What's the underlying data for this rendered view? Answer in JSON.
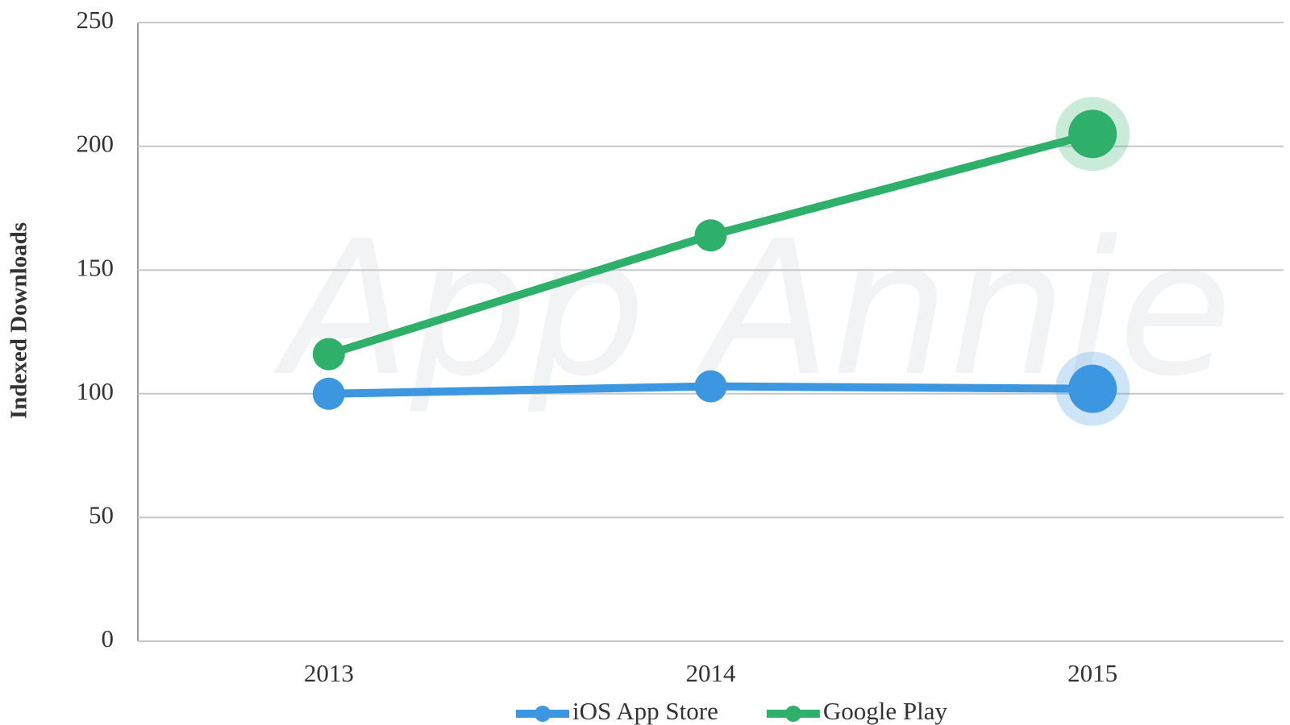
{
  "chart_data": {
    "type": "line",
    "y_label": "Indexed Downloads",
    "watermark": "App Annie",
    "categories": [
      "2013",
      "2014",
      "2015"
    ],
    "series": [
      {
        "name": "iOS App Store",
        "color": "#3d97e0",
        "values": [
          100,
          103,
          102
        ]
      },
      {
        "name": "Google Play",
        "color": "#2eb06a",
        "values": [
          116,
          164,
          205
        ]
      }
    ],
    "ylim": [
      0,
      250
    ],
    "yticks": [
      0,
      50,
      100,
      150,
      200,
      250
    ],
    "grid": true,
    "legend": "bottom"
  }
}
